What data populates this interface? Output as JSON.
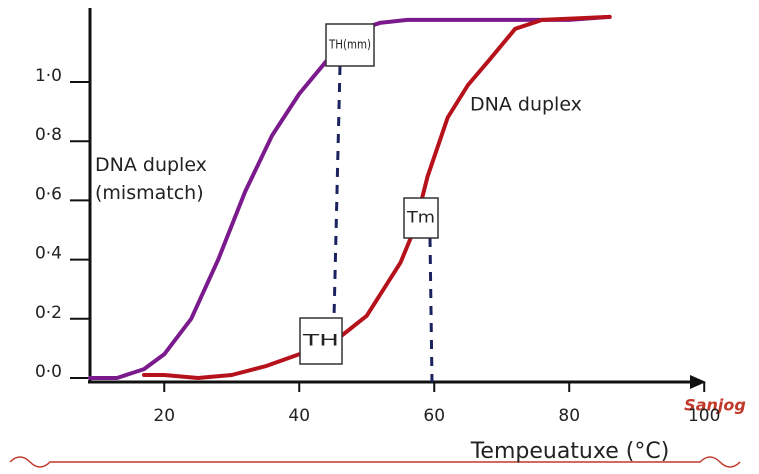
{
  "chart_data": {
    "type": "line",
    "x_label": "Tempeuatuxe (°C)",
    "xlim": [
      9,
      100.5
    ],
    "ylim": [
      0,
      1.24
    ],
    "xticks": [
      20,
      40,
      60,
      80,
      100
    ],
    "yticks": [
      {
        "value": 0,
        "label": "0·0"
      },
      {
        "value": 0.2,
        "label": "0·2"
      },
      {
        "value": 0.4,
        "label": "0·4"
      },
      {
        "value": 0.6,
        "label": "0·6"
      },
      {
        "value": 0.8,
        "label": "0·8"
      },
      {
        "value": 1.0,
        "label": "1·0"
      }
    ],
    "series": [
      {
        "name": "DNA duplex (mismatch)",
        "color": "#7a1a8c",
        "x": [
          9,
          13,
          17,
          20,
          24,
          28,
          32,
          36,
          40,
          44,
          48,
          52,
          56,
          60,
          70,
          80,
          86
        ],
        "values": [
          0,
          0,
          0.03,
          0.08,
          0.2,
          0.4,
          0.63,
          0.82,
          0.96,
          1.07,
          1.17,
          1.2,
          1.21,
          1.21,
          1.21,
          1.21,
          1.22
        ]
      },
      {
        "name": "DNA duplex",
        "color": "#b5121b",
        "x": [
          17,
          20,
          25,
          30,
          35,
          40,
          45,
          50,
          55,
          57,
          59,
          62,
          65,
          68,
          72,
          76,
          86
        ],
        "values": [
          0.01,
          0.01,
          0,
          0.01,
          0.04,
          0.08,
          0.12,
          0.21,
          0.39,
          0.5,
          0.68,
          0.88,
          0.99,
          1.07,
          1.18,
          1.21,
          1.22
        ]
      }
    ],
    "annotations": [
      "TH(mm)",
      "TH",
      "Tm"
    ],
    "watermark": "Sanjog"
  }
}
